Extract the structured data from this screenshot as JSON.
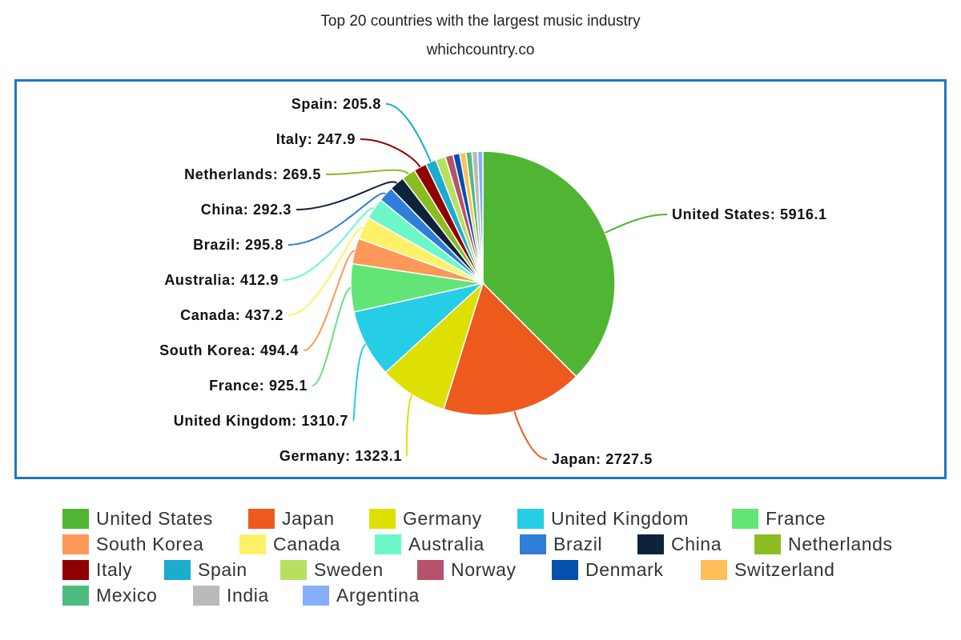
{
  "page": {
    "title": "Top 20 countries with the largest music industry",
    "subtitle": "whichcountry.co"
  },
  "chart_data": {
    "type": "pie",
    "title": "Top 20 countries with the largest music industry",
    "subtitle": "whichcountry.co",
    "legend_position": "bottom",
    "frame_color": "#1f78c1",
    "slices": [
      {
        "name": "United States",
        "value": 5916.1,
        "color": "#4fb533",
        "label": "United States: 5916.1"
      },
      {
        "name": "Japan",
        "value": 2727.5,
        "color": "#ee5a1e",
        "label": "Japan: 2727.5"
      },
      {
        "name": "Germany",
        "value": 1323.1,
        "color": "#dde000",
        "label": "Germany: 1323.1"
      },
      {
        "name": "United Kingdom",
        "value": 1310.7,
        "color": "#25cde5",
        "label": "United Kingdom: 1310.7"
      },
      {
        "name": "France",
        "value": 925.1,
        "color": "#63e477",
        "label": "France: 925.1"
      },
      {
        "name": "South Korea",
        "value": 494.4,
        "color": "#fd9858",
        "label": "South Korea: 494.4"
      },
      {
        "name": "Canada",
        "value": 437.2,
        "color": "#fdf267",
        "label": "Canada: 437.2"
      },
      {
        "name": "Australia",
        "value": 412.9,
        "color": "#6ef7c8",
        "label": "Australia: 412.9"
      },
      {
        "name": "Brazil",
        "value": 295.8,
        "color": "#2f7ed8",
        "label": "Brazil: 295.8"
      },
      {
        "name": "China",
        "value": 292.3,
        "color": "#0d233a",
        "label": "China: 292.3"
      },
      {
        "name": "Netherlands",
        "value": 269.5,
        "color": "#8bbc21",
        "label": "Netherlands: 269.5"
      },
      {
        "name": "Italy",
        "value": 247.9,
        "color": "#910000",
        "label": "Italy: 247.9"
      },
      {
        "name": "Spain",
        "value": 205.8,
        "color": "#1aadce",
        "label": "Spain: 205.8"
      },
      {
        "name": "Sweden",
        "value": 190.0,
        "color": "#b7e05f",
        "label": ""
      },
      {
        "name": "Norway",
        "value": 150.0,
        "color": "#b5536a",
        "label": ""
      },
      {
        "name": "Denmark",
        "value": 130.0,
        "color": "#0350ae",
        "label": ""
      },
      {
        "name": "Switzerland",
        "value": 120.0,
        "color": "#ffbf5a",
        "label": ""
      },
      {
        "name": "Mexico",
        "value": 115.0,
        "color": "#4cbd7f",
        "label": ""
      },
      {
        "name": "India",
        "value": 110.0,
        "color": "#bababa",
        "label": ""
      },
      {
        "name": "Argentina",
        "value": 100.0,
        "color": "#87aefa",
        "label": ""
      }
    ]
  },
  "legend": {
    "rows": [
      [
        "United States",
        "Japan",
        "Germany",
        "United Kingdom",
        "France"
      ],
      [
        "South Korea",
        "Canada",
        "Australia",
        "Brazil",
        "China",
        "Netherlands"
      ],
      [
        "Italy",
        "Spain",
        "Sweden",
        "Norway",
        "Denmark",
        "Switzerland"
      ],
      [
        "Mexico",
        "India",
        "Argentina"
      ]
    ],
    "colors": {
      "United States": "#4fb533",
      "Japan": "#ee5a1e",
      "Germany": "#dde000",
      "United Kingdom": "#25cde5",
      "France": "#63e477",
      "South Korea": "#fd9858",
      "Canada": "#fdf267",
      "Australia": "#6ef7c8",
      "Brazil": "#2f7ed8",
      "China": "#0d233a",
      "Netherlands": "#8bbc21",
      "Italy": "#910000",
      "Spain": "#1aadce",
      "Sweden": "#b7e05f",
      "Norway": "#b5536a",
      "Denmark": "#0350ae",
      "Switzerland": "#ffbf5a",
      "Mexico": "#4cbd7f",
      "India": "#bababa",
      "Argentina": "#87aefa"
    }
  }
}
